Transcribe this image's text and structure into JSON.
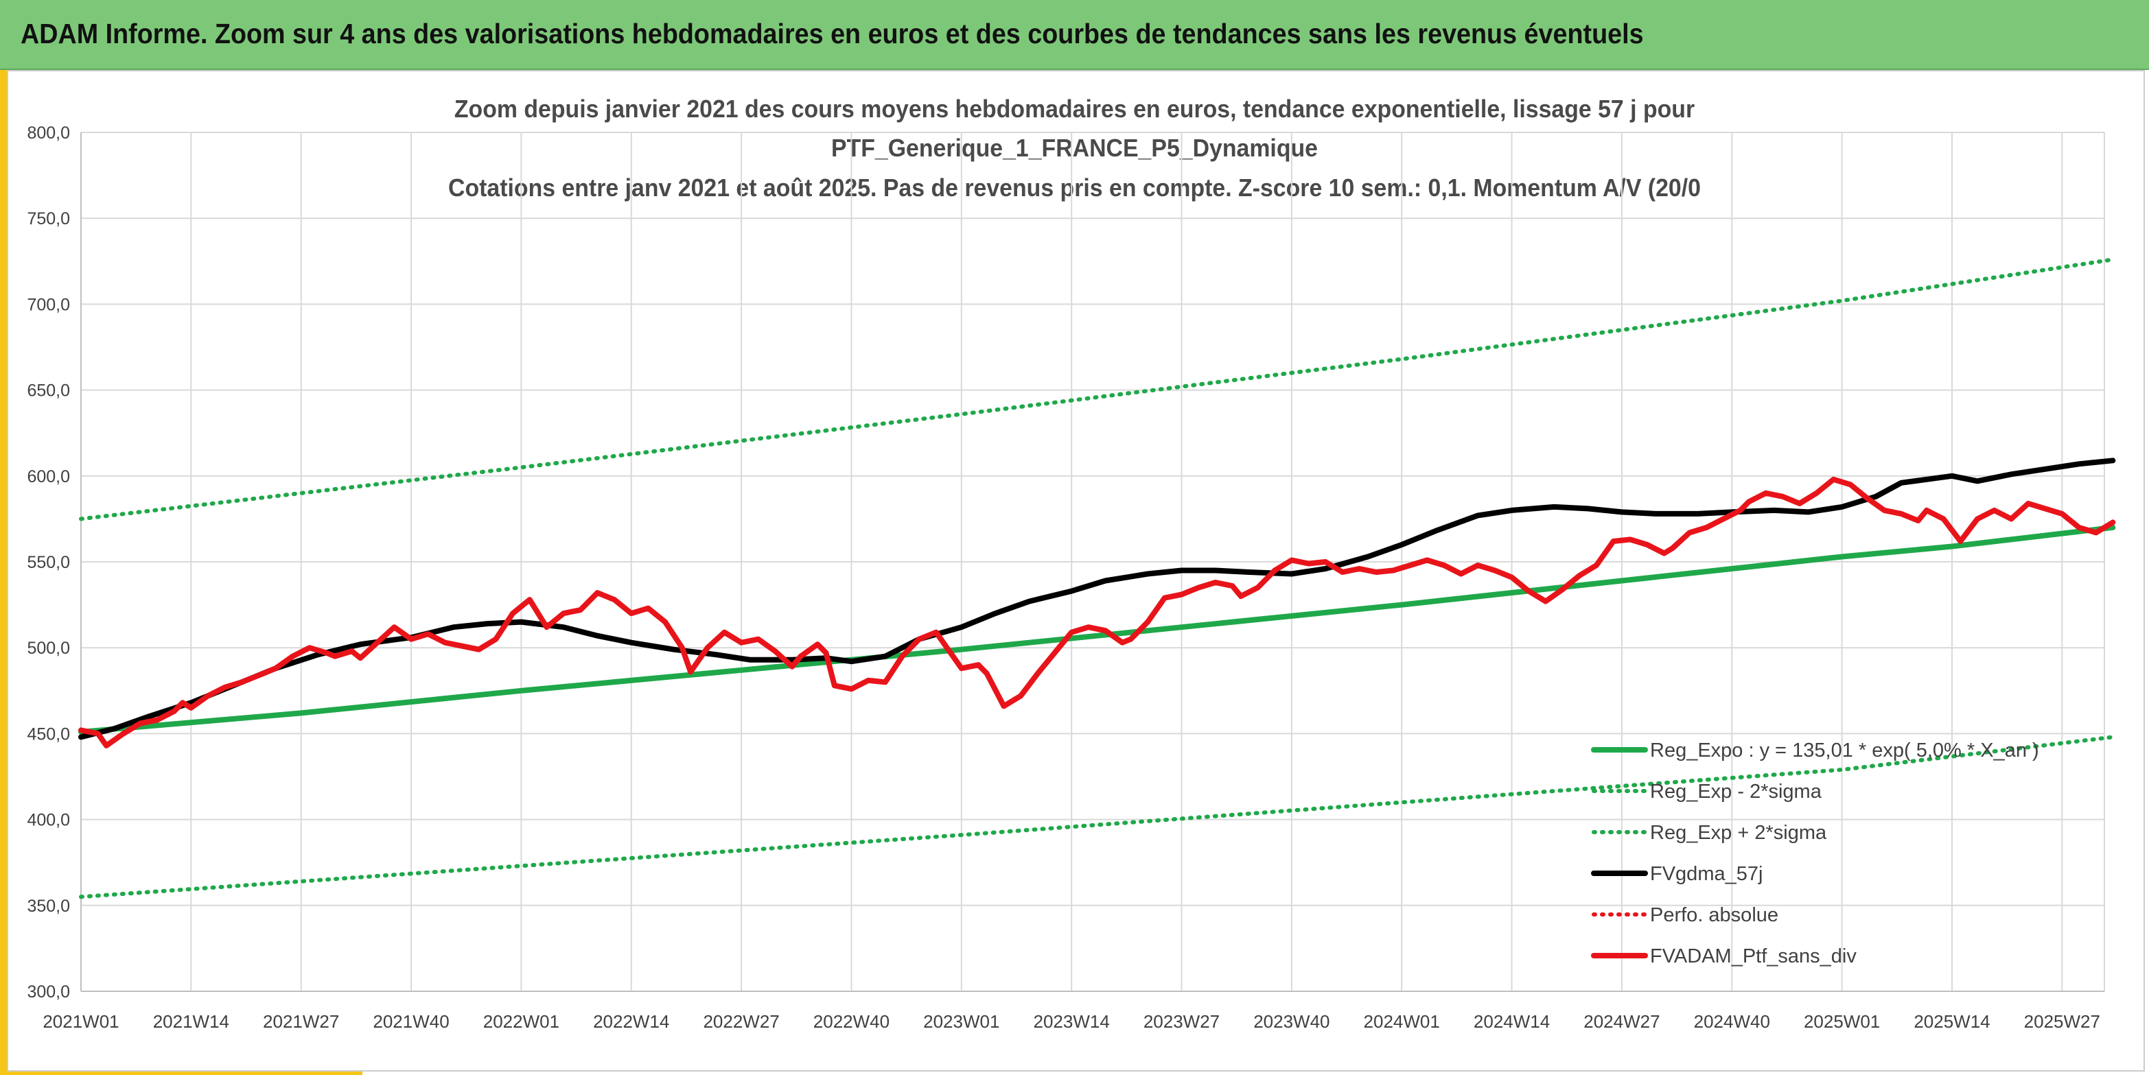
{
  "header": {
    "title": "ADAM Informe. Zoom sur 4 ans des valorisations hebdomadaires en euros et des courbes de tendances sans les revenus éventuels"
  },
  "colors": {
    "header_bg": "#7dc878",
    "accent_yellow": "#f5c518",
    "reg_expo": "#1fa84a",
    "reg_dotted": "#1fa84a",
    "fvgdma": "#000000",
    "perfo": "#e8141a",
    "fvadam": "#e8141a",
    "grid": "#d9d9d9",
    "axis_text": "#404040"
  },
  "chart_data": {
    "type": "line",
    "title_lines": [
      "Zoom depuis janvier 2021 des cours moyens hebdomadaires en euros, tendance exponentielle, lissage 57 j pour",
      "PTF_Generique_1_FRANCE_P5_Dynamique",
      "Cotations entre janv 2021 et août 2025. Pas de revenus pris en compte. Z-score 10 sem.: 0,1. Momentum A/V (20/0"
    ],
    "ylim": [
      300,
      800
    ],
    "yticks": [
      "300,0",
      "350,0",
      "400,0",
      "450,0",
      "500,0",
      "550,0",
      "600,0",
      "650,0",
      "700,0",
      "750,0",
      "800,0"
    ],
    "xlim": [
      0,
      239
    ],
    "xticks": [
      {
        "x": 0,
        "label": "2021W01"
      },
      {
        "x": 13,
        "label": "2021W14"
      },
      {
        "x": 26,
        "label": "2021W27"
      },
      {
        "x": 39,
        "label": "2021W40"
      },
      {
        "x": 52,
        "label": "2022W01"
      },
      {
        "x": 65,
        "label": "2022W14"
      },
      {
        "x": 78,
        "label": "2022W27"
      },
      {
        "x": 91,
        "label": "2022W40"
      },
      {
        "x": 104,
        "label": "2023W01"
      },
      {
        "x": 117,
        "label": "2023W14"
      },
      {
        "x": 130,
        "label": "2023W27"
      },
      {
        "x": 143,
        "label": "2023W40"
      },
      {
        "x": 156,
        "label": "2024W01"
      },
      {
        "x": 169,
        "label": "2024W14"
      },
      {
        "x": 182,
        "label": "2024W27"
      },
      {
        "x": 195,
        "label": "2024W40"
      },
      {
        "x": 208,
        "label": "2025W01"
      },
      {
        "x": 221,
        "label": "2025W14"
      },
      {
        "x": 234,
        "label": "2025W27"
      }
    ],
    "grid": true,
    "legend_position": "bottom-right",
    "series": [
      {
        "name": "Reg_Expo : y = 135,01 * exp( 5,0% * X_an )",
        "style": "solid-thick",
        "color": "#1fa84a",
        "points": [
          [
            0,
            451
          ],
          [
            26,
            462
          ],
          [
            52,
            475
          ],
          [
            78,
            487
          ],
          [
            104,
            499
          ],
          [
            130,
            512
          ],
          [
            156,
            525
          ],
          [
            182,
            539
          ],
          [
            208,
            553
          ],
          [
            221,
            559
          ],
          [
            240,
            570
          ]
        ]
      },
      {
        "name": "Reg_Exp - 2*sigma",
        "style": "dotted",
        "color": "#1fa84a",
        "points": [
          [
            0,
            355
          ],
          [
            52,
            373
          ],
          [
            104,
            391
          ],
          [
            156,
            410
          ],
          [
            208,
            429
          ],
          [
            240,
            448
          ]
        ]
      },
      {
        "name": "Reg_Exp + 2*sigma",
        "style": "dotted",
        "color": "#1fa84a",
        "points": [
          [
            0,
            575
          ],
          [
            52,
            605
          ],
          [
            104,
            636
          ],
          [
            156,
            668
          ],
          [
            208,
            702
          ],
          [
            240,
            726
          ]
        ]
      },
      {
        "name": "FVgdma_57j",
        "style": "solid-thick",
        "color": "#000000",
        "points": [
          [
            0,
            448
          ],
          [
            4,
            453
          ],
          [
            8,
            460
          ],
          [
            13,
            468
          ],
          [
            18,
            478
          ],
          [
            23,
            488
          ],
          [
            28,
            496
          ],
          [
            33,
            502
          ],
          [
            39,
            506
          ],
          [
            44,
            512
          ],
          [
            48,
            514
          ],
          [
            52,
            515
          ],
          [
            57,
            512
          ],
          [
            61,
            507
          ],
          [
            65,
            503
          ],
          [
            70,
            499
          ],
          [
            75,
            496
          ],
          [
            79,
            493
          ],
          [
            84,
            493
          ],
          [
            88,
            494
          ],
          [
            91,
            492
          ],
          [
            95,
            495
          ],
          [
            99,
            505
          ],
          [
            104,
            512
          ],
          [
            108,
            520
          ],
          [
            112,
            527
          ],
          [
            117,
            533
          ],
          [
            121,
            539
          ],
          [
            126,
            543
          ],
          [
            130,
            545
          ],
          [
            134,
            545
          ],
          [
            138,
            544
          ],
          [
            143,
            543
          ],
          [
            147,
            546
          ],
          [
            152,
            553
          ],
          [
            156,
            560
          ],
          [
            160,
            568
          ],
          [
            165,
            577
          ],
          [
            169,
            580
          ],
          [
            174,
            582
          ],
          [
            178,
            581
          ],
          [
            182,
            579
          ],
          [
            186,
            578
          ],
          [
            191,
            578
          ],
          [
            195,
            579
          ],
          [
            200,
            580
          ],
          [
            204,
            579
          ],
          [
            208,
            582
          ],
          [
            212,
            588
          ],
          [
            215,
            596
          ],
          [
            218,
            598
          ],
          [
            221,
            600
          ],
          [
            224,
            597
          ],
          [
            228,
            601
          ],
          [
            232,
            604
          ],
          [
            236,
            607
          ],
          [
            240,
            609
          ]
        ]
      },
      {
        "name": "Perfo. absolue",
        "style": "dotted",
        "color": "#e8141a",
        "points": []
      },
      {
        "name": "FVADAM_Ptf_sans_div",
        "style": "solid-thick",
        "color": "#e8141a",
        "points": [
          [
            0,
            452
          ],
          [
            2,
            450
          ],
          [
            3,
            443
          ],
          [
            5,
            450
          ],
          [
            7,
            456
          ],
          [
            9,
            458
          ],
          [
            11,
            463
          ],
          [
            12,
            468
          ],
          [
            13,
            465
          ],
          [
            15,
            472
          ],
          [
            17,
            477
          ],
          [
            19,
            480
          ],
          [
            21,
            484
          ],
          [
            23,
            488
          ],
          [
            25,
            495
          ],
          [
            27,
            500
          ],
          [
            29,
            497
          ],
          [
            30,
            495
          ],
          [
            32,
            498
          ],
          [
            33,
            494
          ],
          [
            35,
            503
          ],
          [
            37,
            512
          ],
          [
            39,
            505
          ],
          [
            41,
            508
          ],
          [
            43,
            503
          ],
          [
            45,
            501
          ],
          [
            47,
            499
          ],
          [
            49,
            505
          ],
          [
            51,
            520
          ],
          [
            53,
            528
          ],
          [
            55,
            512
          ],
          [
            57,
            520
          ],
          [
            59,
            522
          ],
          [
            61,
            532
          ],
          [
            63,
            528
          ],
          [
            65,
            520
          ],
          [
            67,
            523
          ],
          [
            69,
            515
          ],
          [
            71,
            500
          ],
          [
            72,
            486
          ],
          [
            74,
            500
          ],
          [
            76,
            509
          ],
          [
            78,
            503
          ],
          [
            80,
            505
          ],
          [
            82,
            498
          ],
          [
            84,
            489
          ],
          [
            85,
            495
          ],
          [
            87,
            502
          ],
          [
            88,
            497
          ],
          [
            89,
            478
          ],
          [
            91,
            476
          ],
          [
            93,
            481
          ],
          [
            95,
            480
          ],
          [
            97,
            495
          ],
          [
            99,
            505
          ],
          [
            101,
            509
          ],
          [
            103,
            495
          ],
          [
            104,
            488
          ],
          [
            106,
            490
          ],
          [
            107,
            485
          ],
          [
            109,
            466
          ],
          [
            111,
            472
          ],
          [
            113,
            485
          ],
          [
            115,
            497
          ],
          [
            117,
            509
          ],
          [
            119,
            512
          ],
          [
            121,
            510
          ],
          [
            123,
            503
          ],
          [
            124,
            505
          ],
          [
            126,
            515
          ],
          [
            128,
            529
          ],
          [
            130,
            531
          ],
          [
            132,
            535
          ],
          [
            134,
            538
          ],
          [
            136,
            536
          ],
          [
            137,
            530
          ],
          [
            139,
            535
          ],
          [
            141,
            545
          ],
          [
            143,
            551
          ],
          [
            145,
            549
          ],
          [
            147,
            550
          ],
          [
            149,
            544
          ],
          [
            151,
            546
          ],
          [
            153,
            544
          ],
          [
            155,
            545
          ],
          [
            157,
            548
          ],
          [
            159,
            551
          ],
          [
            161,
            548
          ],
          [
            163,
            543
          ],
          [
            165,
            548
          ],
          [
            167,
            545
          ],
          [
            169,
            541
          ],
          [
            171,
            533
          ],
          [
            173,
            527
          ],
          [
            175,
            534
          ],
          [
            177,
            542
          ],
          [
            179,
            548
          ],
          [
            181,
            562
          ],
          [
            183,
            563
          ],
          [
            185,
            560
          ],
          [
            187,
            555
          ],
          [
            188,
            558
          ],
          [
            190,
            567
          ],
          [
            192,
            570
          ],
          [
            194,
            575
          ],
          [
            196,
            580
          ],
          [
            197,
            585
          ],
          [
            199,
            590
          ],
          [
            201,
            588
          ],
          [
            203,
            584
          ],
          [
            205,
            590
          ],
          [
            207,
            598
          ],
          [
            209,
            595
          ],
          [
            211,
            587
          ],
          [
            213,
            580
          ],
          [
            215,
            578
          ],
          [
            217,
            574
          ],
          [
            218,
            580
          ],
          [
            220,
            575
          ],
          [
            222,
            562
          ],
          [
            224,
            575
          ],
          [
            226,
            580
          ],
          [
            228,
            575
          ],
          [
            230,
            584
          ],
          [
            232,
            581
          ],
          [
            234,
            578
          ],
          [
            236,
            570
          ],
          [
            238,
            567
          ],
          [
            240,
            573
          ]
        ]
      }
    ]
  }
}
